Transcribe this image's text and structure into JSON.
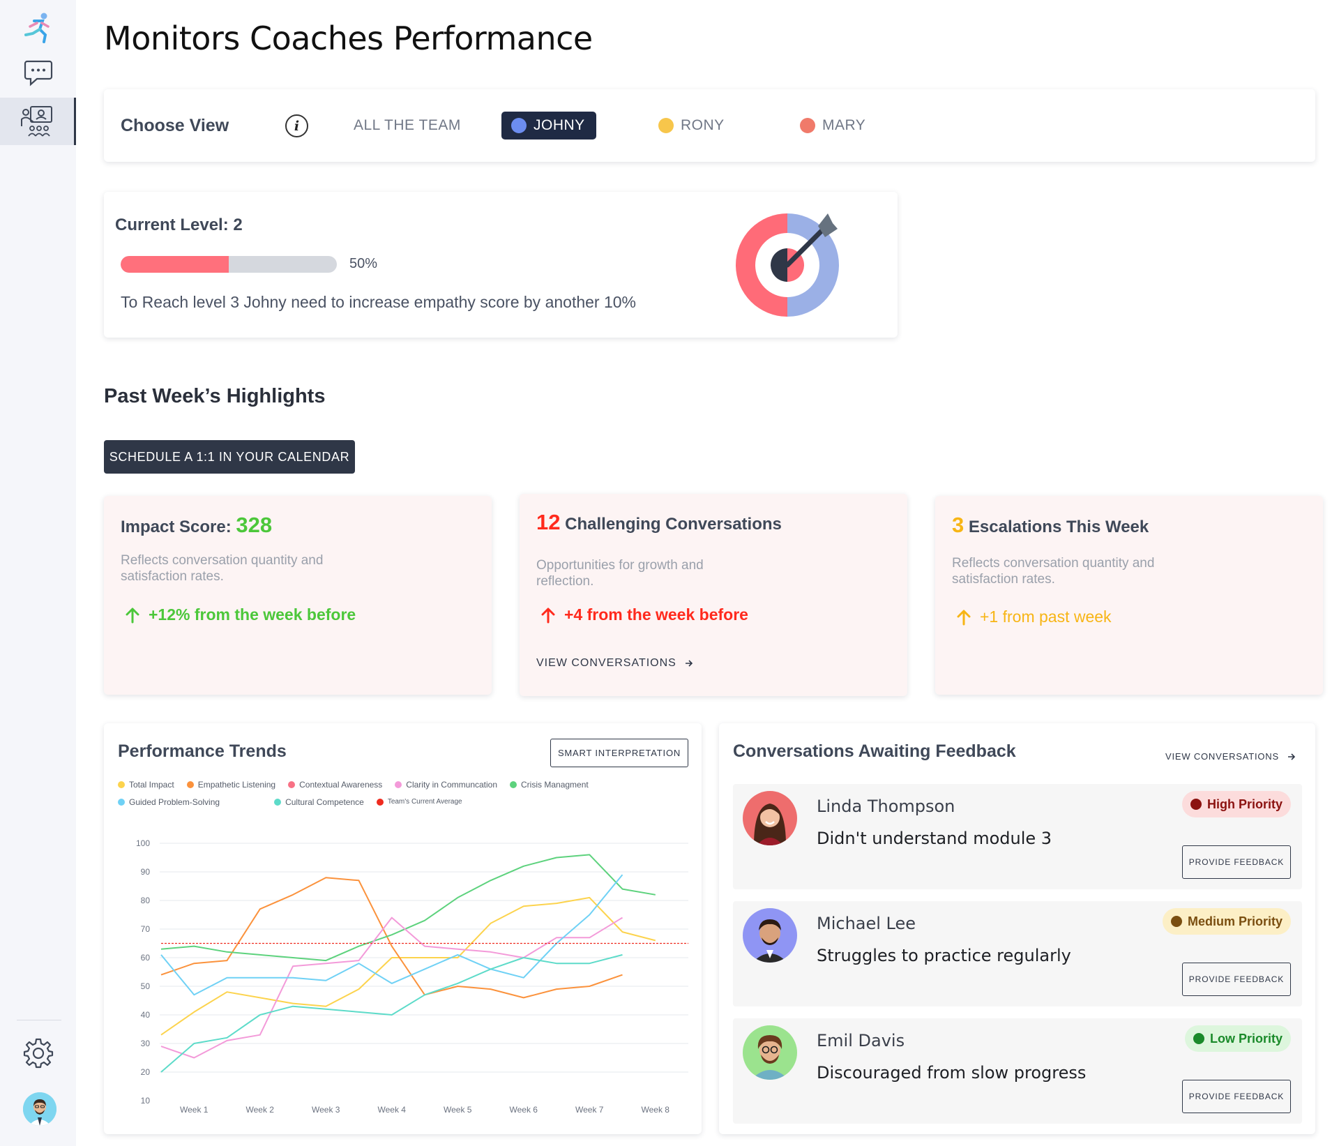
{
  "page": {
    "title": "Monitors Coaches Performance"
  },
  "sidebar": {
    "items": [
      {
        "icon": "runner-logo-icon"
      },
      {
        "icon": "chat-icon"
      },
      {
        "icon": "coach-presentation-icon",
        "active": true
      }
    ],
    "bottom": {
      "settings_icon": "gear-icon",
      "avatar": "user-avatar"
    }
  },
  "view_selector": {
    "title": "Choose View",
    "info_icon": "info-icon",
    "options": [
      {
        "label": "ALL THE TEAM",
        "selected": false
      },
      {
        "label": "JOHNY",
        "selected": true
      },
      {
        "label": "RONY",
        "selected": false
      },
      {
        "label": "MARY",
        "selected": false
      }
    ]
  },
  "level": {
    "title": "Current Level: 2",
    "progress": 0.5,
    "progress_label": "50%",
    "note": "To Reach level 3 Johny need to increase empathy score by another 10%",
    "icon": "target-dart-icon"
  },
  "highlights": {
    "title": "Past Week’s Highlights",
    "schedule_button": "SCHEDULE A 1:1 IN YOUR CALENDAR",
    "cards": [
      {
        "title_prefix": "Impact Score: ",
        "value": "328",
        "desc": "Reflects conversation quantity and satisfaction rates.",
        "trend": "+12% from the week before",
        "color": "#4cc73a"
      },
      {
        "value": "12",
        "title_suffix": " Challenging Conversations",
        "desc": "Opportunities for growth and reflection.",
        "trend": "+4 from the week before",
        "link": "VIEW CONVERSATIONS",
        "color": "#ff2a1d"
      },
      {
        "value": "3",
        "title_suffix": " Escalations This Week",
        "desc": "Reflects conversation quantity and satisfaction rates.",
        "trend": "+1 from past week",
        "color": "#f7b515"
      }
    ]
  },
  "performance": {
    "title": "Performance Trends",
    "button": "SMART INTERPRETATION",
    "legend": [
      {
        "name": "Total Impact",
        "color": "#fcd34d"
      },
      {
        "name": "Empathetic Listening",
        "color": "#fb923c"
      },
      {
        "name": "Contextual Awareness",
        "color": "#f87185"
      },
      {
        "name": "Clarity in Communcation",
        "color": "#f39ad9"
      },
      {
        "name": "Crisis Managment",
        "color": "#5dd27d"
      },
      {
        "name": "Guided Problem-Solving",
        "color": "#6fd1f5"
      },
      {
        "name": "Cultural Competence",
        "color": "#5ddbc9"
      },
      {
        "name": "Team's Current Average",
        "color": "#ef2b1f"
      }
    ]
  },
  "chart_data": {
    "type": "line",
    "x": [
      "",
      "Week 1",
      "",
      "Week 2",
      "",
      "Week 3",
      "",
      "Week 4",
      "",
      "Week 5",
      "",
      "Week 6",
      "",
      "Week 7",
      "",
      "Week 8",
      ""
    ],
    "xlabel": "",
    "ylabel": "",
    "ylim": [
      10,
      100
    ],
    "yticks": [
      100,
      90,
      80,
      70,
      60,
      50,
      40,
      30,
      20,
      10
    ],
    "grid": true,
    "series": [
      {
        "name": "Total Impact",
        "color": "#fcd34d",
        "values": [
          33,
          41,
          48,
          46,
          44,
          43,
          49,
          60,
          60,
          60,
          72,
          78,
          79,
          81,
          69,
          66,
          null
        ]
      },
      {
        "name": "Empathetic Listening",
        "color": "#fb923c",
        "values": [
          54,
          58,
          59,
          77,
          82,
          88,
          87,
          64,
          47,
          50,
          49,
          46,
          49,
          50,
          54,
          null,
          null
        ]
      },
      {
        "name": "Crisis Managment",
        "color": "#5dd27d",
        "values": [
          63,
          64,
          62,
          61,
          60,
          59,
          64,
          68,
          73,
          81,
          87,
          92,
          95,
          96,
          84,
          82,
          null
        ]
      },
      {
        "name": "Clarity in Communcation",
        "color": "#f39ad9",
        "values": [
          29,
          25,
          31,
          33,
          57,
          58,
          59,
          74,
          64,
          63,
          62,
          60,
          67,
          67,
          74,
          null,
          null
        ]
      },
      {
        "name": "Guided Problem-Solving",
        "color": "#6fd1f5",
        "values": [
          61,
          47,
          53,
          53,
          53,
          52,
          58,
          51,
          56,
          61,
          56,
          53,
          65,
          75,
          89,
          null,
          null
        ]
      },
      {
        "name": "Cultural Competence",
        "color": "#5ddbc9",
        "values": [
          20,
          30,
          32,
          40,
          43,
          42,
          41,
          40,
          47,
          51,
          56,
          60,
          58,
          58,
          61,
          null,
          null
        ]
      },
      {
        "name": "Team's Current Average",
        "color": "#ef2b1f",
        "values": [
          65,
          65,
          65,
          65,
          65,
          65,
          65,
          65,
          65,
          65,
          65,
          65,
          65,
          65,
          65,
          65,
          65
        ],
        "dashed": true
      }
    ]
  },
  "feedback": {
    "title": "Conversations Awaiting Feedback",
    "link": "VIEW CONVERSATIONS",
    "button_label": "PROVIDE FEEDBACK",
    "items": [
      {
        "name": "Linda Thompson",
        "message": "Didn't understand module 3",
        "priority": "High Priority",
        "priority_bg": "#fcdcdc",
        "priority_dot": "#8b1210",
        "priority_color": "#8b1210",
        "avatar_bg": "#ee6d6d"
      },
      {
        "name": "Michael Lee",
        "message": "Struggles to practice regularly",
        "priority": "Medium Priority",
        "priority_bg": "#fcefc6",
        "priority_dot": "#7a4e10",
        "priority_color": "#7a4e10",
        "avatar_bg": "#8f95f4"
      },
      {
        "name": "Emil Davis",
        "message": "Discouraged from slow progress",
        "priority": "Low Priority",
        "priority_bg": "#ddf6dd",
        "priority_dot": "#1a8a2a",
        "priority_color": "#1a8a2a",
        "avatar_bg": "#9be38e"
      }
    ]
  }
}
